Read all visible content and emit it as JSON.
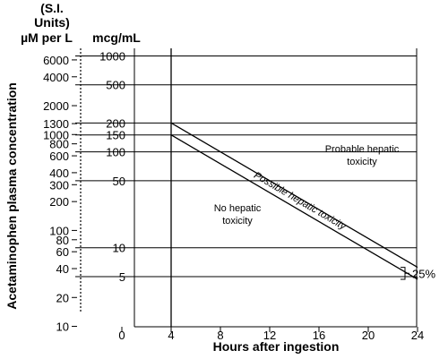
{
  "chart_data": {
    "type": "line",
    "y_scale": "log",
    "header": {
      "si_units_line1": "(S.I.",
      "si_units_line2": "Units)",
      "si_unit": "µM per L",
      "mass_unit": "mcg/mL"
    },
    "xlabel": "Hours after ingestion",
    "ylabel": "Acetaminophen plasma concentration",
    "xlim": [
      0,
      24
    ],
    "ylim_mcg_per_ml": [
      1.5,
      1200
    ],
    "x_ticks": [
      0,
      4,
      8,
      12,
      16,
      20,
      24
    ],
    "y_ticks_si": [
      {
        "value": 6000,
        "label": "6000"
      },
      {
        "value": 4000,
        "label": "4000"
      },
      {
        "value": 2000,
        "label": "2000"
      },
      {
        "value": 1300,
        "label": "1300"
      },
      {
        "value": 1000,
        "label": "1000"
      },
      {
        "value": 800,
        "label": "800"
      },
      {
        "value": 600,
        "label": "600"
      },
      {
        "value": 400,
        "label": "400"
      },
      {
        "value": 300,
        "label": "300"
      },
      {
        "value": 200,
        "label": "200"
      },
      {
        "value": 100,
        "label": "100"
      },
      {
        "value": 80,
        "label": "80"
      },
      {
        "value": 60,
        "label": "60"
      },
      {
        "value": 40,
        "label": "40"
      },
      {
        "value": 20,
        "label": "20"
      },
      {
        "value": 10,
        "label": "10"
      }
    ],
    "y_ticks_mass": [
      {
        "value": 1000,
        "label": "1000"
      },
      {
        "value": 500,
        "label": "500"
      },
      {
        "value": 200,
        "label": "200"
      },
      {
        "value": 150,
        "label": "150"
      },
      {
        "value": 100,
        "label": "100"
      },
      {
        "value": 50,
        "label": "50"
      },
      {
        "value": 10,
        "label": "10"
      },
      {
        "value": 5,
        "label": "5"
      }
    ],
    "grid_lines_mcg_per_ml": [
      1000,
      500,
      200,
      150,
      100,
      50,
      10,
      5
    ],
    "vertical_line_hours": 4,
    "series": [
      {
        "x": [
          4,
          24
        ],
        "y": [
          200,
          6.25
        ]
      },
      {
        "x": [
          4,
          24
        ],
        "y": [
          150,
          4.69
        ]
      }
    ],
    "annotations": {
      "probable_line1": "Probable hepatic",
      "probable_line2": "toxicity",
      "possible": "Possible hepatic toxicity",
      "no_line1": "No hepatic",
      "no_line2": "toxicity",
      "percent": "25%"
    },
    "grid": true
  }
}
